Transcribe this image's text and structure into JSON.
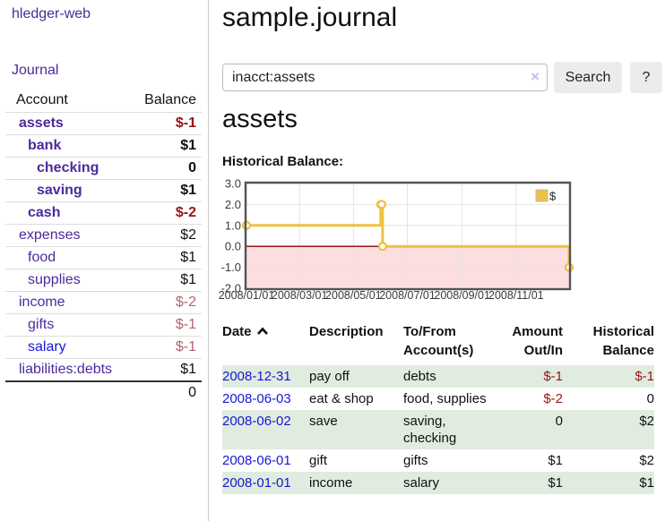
{
  "app": {
    "title": "hledger-web"
  },
  "sidebar": {
    "nav_journal": "Journal",
    "table": {
      "headers": [
        "Account",
        "Balance"
      ],
      "accounts": [
        {
          "name": "assets",
          "depth": 1,
          "bold": true,
          "balance": "$-1",
          "balance_style": "neg"
        },
        {
          "name": "bank",
          "depth": 2,
          "bold": true,
          "balance": "$1",
          "balance_style": ""
        },
        {
          "name": "checking",
          "depth": 3,
          "bold": true,
          "balance": "0",
          "balance_style": ""
        },
        {
          "name": "saving",
          "depth": 3,
          "bold": true,
          "balance": "$1",
          "balance_style": ""
        },
        {
          "name": "cash",
          "depth": 2,
          "bold": true,
          "balance": "$-2",
          "balance_style": "neg"
        },
        {
          "name": "expenses",
          "depth": 1,
          "bold": false,
          "balance": "$2",
          "balance_style": ""
        },
        {
          "name": "food",
          "depth": 2,
          "bold": false,
          "balance": "$1",
          "balance_style": ""
        },
        {
          "name": "supplies",
          "depth": 2,
          "bold": false,
          "balance": "$1",
          "balance_style": ""
        },
        {
          "name": "income",
          "depth": 1,
          "bold": false,
          "balance": "$-2",
          "balance_style": "negmuted"
        },
        {
          "name": "gifts",
          "depth": 2,
          "bold": false,
          "balance": "$-1",
          "balance_style": "negmuted"
        },
        {
          "name": "salary",
          "depth": 2,
          "bold": false,
          "blue": true,
          "balance": "$-1",
          "balance_style": "negmuted"
        },
        {
          "name": "liabilities:debts",
          "depth": 1,
          "bold": false,
          "balance": "$1",
          "balance_style": ""
        }
      ],
      "total": "0"
    }
  },
  "header": {
    "title": "sample.journal"
  },
  "search": {
    "value": "inacct:assets",
    "clear_icon": "×",
    "button": "Search",
    "help": "?"
  },
  "main": {
    "account_heading": "assets",
    "chart_heading": "Historical Balance:"
  },
  "chart_data": {
    "type": "line",
    "step": true,
    "title": "Historical Balance:",
    "series": [
      {
        "name": "$",
        "color": "#edc240",
        "points": [
          [
            "2008-01-01",
            1
          ],
          [
            "2008-06-01",
            2
          ],
          [
            "2008-06-02",
            2
          ],
          [
            "2008-06-03",
            0
          ],
          [
            "2008-12-31",
            -1
          ]
        ]
      }
    ],
    "x_range": [
      "2008-01-01",
      "2008-12-31"
    ],
    "ylim": [
      -2,
      3
    ],
    "yticks": [
      "3.0",
      "2.0",
      "1.0",
      "0.0",
      "-1.0",
      "-2.0"
    ],
    "xticks": [
      {
        "date": "2008-01-01",
        "label": "2008/01/01"
      },
      {
        "date": "2008-03-01",
        "label": "2008/03/01"
      },
      {
        "date": "2008-05-01",
        "label": "2008/05/01"
      },
      {
        "date": "2008-07-01",
        "label": "2008/07/01"
      },
      {
        "date": "2008-09-01",
        "label": "2008/09/01"
      },
      {
        "date": "2008-11-01",
        "label": "2008/11/01"
      }
    ],
    "legend": {
      "label": "$",
      "position": "top-right"
    },
    "grid": true,
    "negative_region_fill": "#fcdede",
    "zero_line_color": "#8b0000"
  },
  "register": {
    "columns": [
      {
        "label": "Date",
        "align": "left",
        "sorted": "asc"
      },
      {
        "label": "Description",
        "align": "left"
      },
      {
        "label": "To/From Account(s)",
        "align": "left"
      },
      {
        "label": "Amount Out/In",
        "align": "right"
      },
      {
        "label": "Historical Balance",
        "align": "right"
      }
    ],
    "rows": [
      {
        "date": "2008-12-31",
        "description": "pay off",
        "accounts": "debts",
        "amount": "$-1",
        "amount_neg": true,
        "balance": "$-1",
        "balance_neg": true
      },
      {
        "date": "2008-06-03",
        "description": "eat & shop",
        "accounts": "food, supplies",
        "amount": "$-2",
        "amount_neg": true,
        "balance": "0",
        "balance_neg": false
      },
      {
        "date": "2008-06-02",
        "description": "save",
        "accounts": "saving, checking",
        "amount": "0",
        "amount_neg": false,
        "balance": "$2",
        "balance_neg": false
      },
      {
        "date": "2008-06-01",
        "description": "gift",
        "accounts": "gifts",
        "amount": "$1",
        "amount_neg": false,
        "balance": "$2",
        "balance_neg": false
      },
      {
        "date": "2008-01-01",
        "description": "income",
        "accounts": "salary",
        "amount": "$1",
        "amount_neg": false,
        "balance": "$1",
        "balance_neg": false
      }
    ]
  },
  "colors": {
    "link_purple": "#4b2a9b",
    "link_blue": "#1717d6",
    "negative_strong": "#971515",
    "negative_muted": "#b5636d",
    "row_stripe_green": "#dfecdf",
    "chart_line_gold": "#edc240",
    "chart_negative_fill": "#fcdede",
    "chart_zero_line": "#8b0000",
    "button_bg": "#ececec"
  }
}
